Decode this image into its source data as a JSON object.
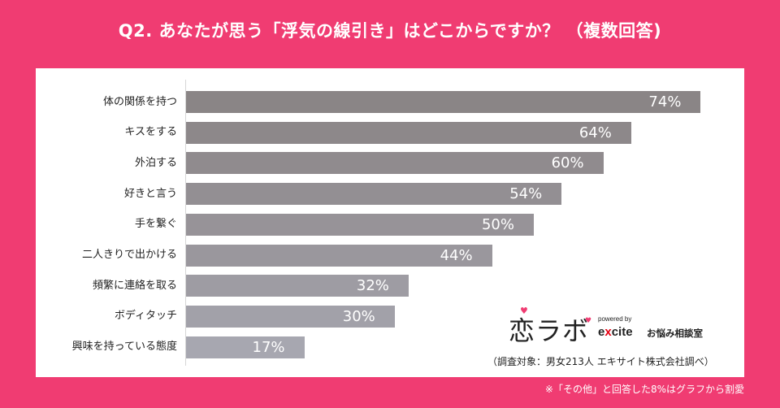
{
  "title": "Q2. あなたが思う「浮気の線引き」はどこからですか？ （複数回答)",
  "chart_data": {
    "type": "bar",
    "orientation": "horizontal",
    "categories": [
      "体の関係を持つ",
      "キスをする",
      "外泊する",
      "好きと言う",
      "手を繋ぐ",
      "二人きりで出かける",
      "頻繁に連絡を取る",
      "ボディタッチ",
      "興味を持っている態度"
    ],
    "values": [
      74,
      64,
      60,
      54,
      50,
      44,
      32,
      30,
      17
    ],
    "value_suffix": "%",
    "xlim": [
      0,
      100
    ],
    "colors": [
      "#8a8586",
      "#8d888a",
      "#908b8e",
      "#938f93",
      "#979398",
      "#9a979d",
      "#9e9ca3",
      "#a2a1a9",
      "#a7a7b0"
    ]
  },
  "logo": {
    "brand": "恋ラボ",
    "powered": "powered by",
    "excite_prefix": "e",
    "excite_x": "x",
    "excite_suffix": "cite",
    "service": "お悩み相談室"
  },
  "survey_note": "（調査対象：男女213人 エキサイト株式会社調べ）",
  "footnote": "※「その他」と回答した8%はグラフから割愛"
}
